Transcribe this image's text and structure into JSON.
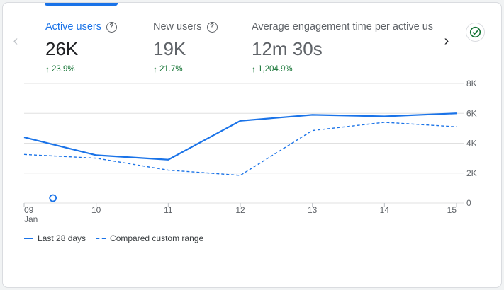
{
  "metrics": [
    {
      "label": "Active users",
      "value": "26K",
      "change": "23.9%",
      "active": true
    },
    {
      "label": "New users",
      "value": "19K",
      "change": "21.7%",
      "active": false
    },
    {
      "label": "Average engagement time per active us",
      "value": "12m 30s",
      "change": "1,204.9%",
      "active": false
    }
  ],
  "nav": {
    "prev": "‹",
    "next": "›"
  },
  "colors": {
    "primary": "#1a73e8",
    "positive": "#137333",
    "grid": "#e0e0e0"
  },
  "chart_data": {
    "type": "line",
    "x": [
      "09",
      "10",
      "11",
      "12",
      "13",
      "14",
      "15"
    ],
    "x_sublabel": "Jan",
    "y_ticks": [
      "0",
      "2K",
      "4K",
      "6K",
      "8K"
    ],
    "ylim": [
      0,
      8000
    ],
    "grid": true,
    "legend_placement": "bottom-left",
    "series": [
      {
        "name": "Last 28 days",
        "style": "solid",
        "values": [
          4400,
          3200,
          2900,
          5500,
          5900,
          5800,
          6000
        ]
      },
      {
        "name": "Compared custom range",
        "style": "dashed",
        "values": [
          3250,
          3000,
          2200,
          1850,
          4850,
          5400,
          5100
        ]
      }
    ],
    "annotation_x": 9.4
  }
}
